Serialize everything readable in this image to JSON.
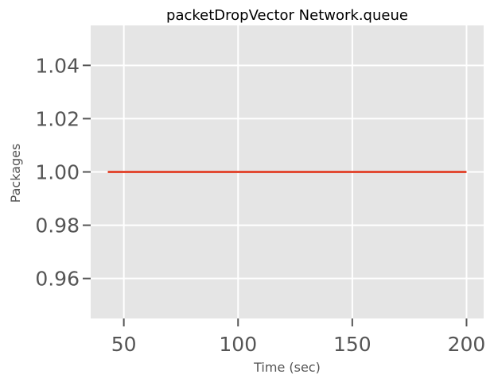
{
  "chart_data": {
    "type": "line",
    "title": "packetDropVector Network.queue",
    "xlabel": "Time (sec)",
    "ylabel": "Packages",
    "xlim": [
      35.5,
      207.5
    ],
    "ylim": [
      0.945,
      1.055
    ],
    "grid": true,
    "background_color": "#e5e5e5",
    "grid_color": "#ffffff",
    "x_ticks": [
      50,
      100,
      150,
      200
    ],
    "x_tick_labels": [
      "50",
      "100",
      "150",
      "200"
    ],
    "y_ticks": [
      0.96,
      0.98,
      1.0,
      1.02,
      1.04
    ],
    "y_tick_labels": [
      "0.96",
      "0.98",
      "1.00",
      "1.02",
      "1.04"
    ],
    "series": [
      {
        "color": "#e24a33",
        "x": [
          43,
          200
        ],
        "y": [
          1.0,
          1.0
        ]
      }
    ]
  }
}
